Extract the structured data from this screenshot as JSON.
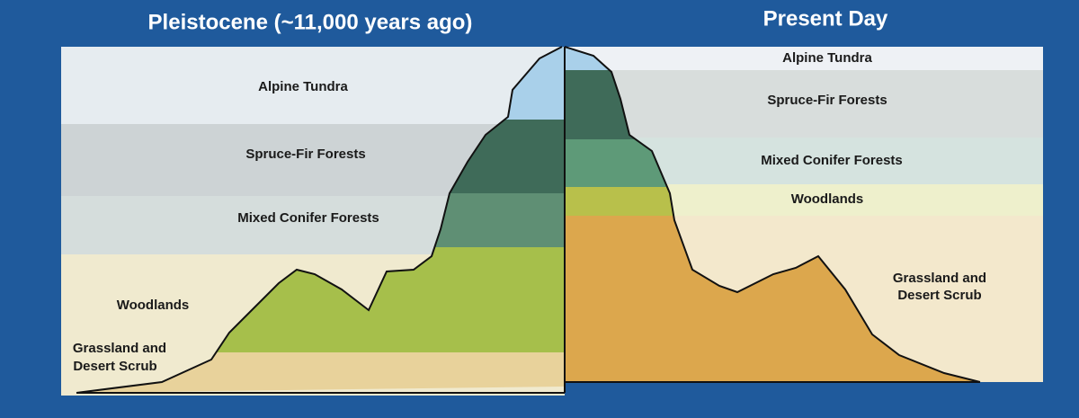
{
  "left": {
    "title": "Pleistocene (~11,000 years ago)",
    "zones": {
      "alpine": "Alpine Tundra",
      "spruce": "Spruce-Fir Forests",
      "mixed": "Mixed Conifer Forests",
      "woodlands": "Woodlands",
      "grassland": [
        "Grassland and",
        "Desert Scrub"
      ]
    }
  },
  "right": {
    "title": "Present Day",
    "zones": {
      "alpine": "Alpine Tundra",
      "spruce": "Spruce-Fir Forests",
      "mixed": "Mixed Conifer Forests",
      "woodlands": "Woodlands",
      "grassland": [
        "Grassland and",
        "Desert Scrub"
      ]
    }
  }
}
